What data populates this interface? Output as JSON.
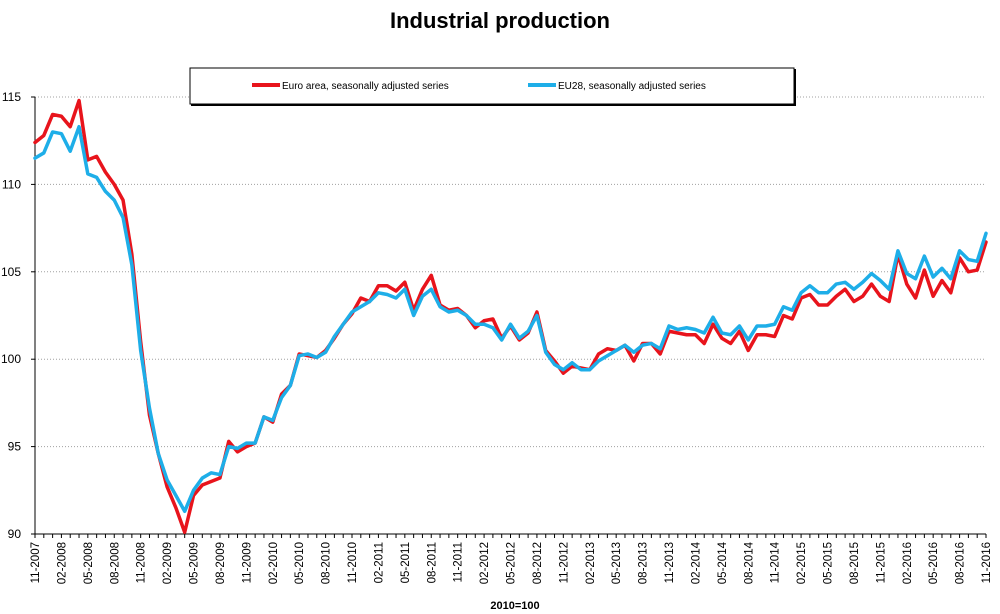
{
  "chart_data": {
    "type": "line",
    "title": "Industrial production",
    "xlabel": "2010=100",
    "ylabel": "",
    "ylim": [
      90,
      115
    ],
    "yticks": [
      90,
      95,
      100,
      105,
      110,
      115
    ],
    "grid": "horizontal dotted",
    "legend_position": "top-center",
    "x_start": "11-2007",
    "x_end": "11-2016",
    "x_tick_labels": [
      "11-2007",
      "02-2008",
      "05-2008",
      "08-2008",
      "11-2008",
      "02-2009",
      "05-2009",
      "08-2009",
      "11-2009",
      "02-2010",
      "05-2010",
      "08-2010",
      "11-2010",
      "02-2011",
      "05-2011",
      "08-2011",
      "11-2011",
      "02-2012",
      "05-2012",
      "08-2012",
      "11-2012",
      "02-2013",
      "05-2013",
      "08-2013",
      "11-2013",
      "02-2014",
      "05-2014",
      "08-2014",
      "11-2014",
      "02-2015",
      "05-2015",
      "08-2015",
      "11-2015",
      "02-2016",
      "05-2016",
      "08-2016",
      "11-2016"
    ],
    "series": [
      {
        "name": "Euro area, seasonally adjusted series",
        "color": "#e8141c",
        "values": [
          112.4,
          112.8,
          114.0,
          113.9,
          113.3,
          114.8,
          111.4,
          111.6,
          110.7,
          110.0,
          109.1,
          106.0,
          101.0,
          96.8,
          94.6,
          92.7,
          91.5,
          90.1,
          92.2,
          92.8,
          93.0,
          93.2,
          95.3,
          94.7,
          95.0,
          95.2,
          96.7,
          96.4,
          98.0,
          98.5,
          100.3,
          100.2,
          100.1,
          100.5,
          101.2,
          102.0,
          102.6,
          103.5,
          103.3,
          104.2,
          104.2,
          103.9,
          104.4,
          102.8,
          104.0,
          104.8,
          103.1,
          102.8,
          102.9,
          102.5,
          101.8,
          102.2,
          102.3,
          101.2,
          101.9,
          101.1,
          101.5,
          102.7,
          100.5,
          99.9,
          99.2,
          99.6,
          99.5,
          99.4,
          100.3,
          100.6,
          100.5,
          100.8,
          99.9,
          100.9,
          100.9,
          100.3,
          101.6,
          101.5,
          101.4,
          101.4,
          100.9,
          102.0,
          101.2,
          100.9,
          101.6,
          100.5,
          101.4,
          101.4,
          101.3,
          102.5,
          102.3,
          103.5,
          103.7,
          103.1,
          103.1,
          103.6,
          104.0,
          103.3,
          103.6,
          104.3,
          103.6,
          103.3,
          106.0,
          104.3,
          103.5,
          105.1,
          103.6,
          104.5,
          103.8,
          105.8,
          105.0,
          105.1,
          106.7
        ]
      },
      {
        "name": "EU28, seasonally adjusted series",
        "color": "#1eaee8",
        "values": [
          111.5,
          111.8,
          113.0,
          112.9,
          111.9,
          113.3,
          110.6,
          110.4,
          109.6,
          109.1,
          108.1,
          105.4,
          100.5,
          97.2,
          94.6,
          93.1,
          92.2,
          91.3,
          92.5,
          93.2,
          93.5,
          93.4,
          95.0,
          94.9,
          95.2,
          95.2,
          96.7,
          96.5,
          97.8,
          98.5,
          100.2,
          100.3,
          100.1,
          100.4,
          101.3,
          102.0,
          102.7,
          103.0,
          103.3,
          103.8,
          103.7,
          103.5,
          104.0,
          102.5,
          103.6,
          104.0,
          103.0,
          102.7,
          102.8,
          102.5,
          102.0,
          102.0,
          101.8,
          101.1,
          102.0,
          101.2,
          101.6,
          102.5,
          100.4,
          99.7,
          99.4,
          99.8,
          99.4,
          99.4,
          99.9,
          100.2,
          100.5,
          100.8,
          100.4,
          100.8,
          100.9,
          100.6,
          101.9,
          101.7,
          101.8,
          101.7,
          101.5,
          102.4,
          101.5,
          101.4,
          101.9,
          101.1,
          101.9,
          101.9,
          102.0,
          103.0,
          102.8,
          103.8,
          104.2,
          103.8,
          103.8,
          104.3,
          104.4,
          104.0,
          104.4,
          104.9,
          104.5,
          104.0,
          106.2,
          104.9,
          104.6,
          105.9,
          104.7,
          105.2,
          104.6,
          106.2,
          105.7,
          105.6,
          107.2
        ]
      }
    ]
  }
}
